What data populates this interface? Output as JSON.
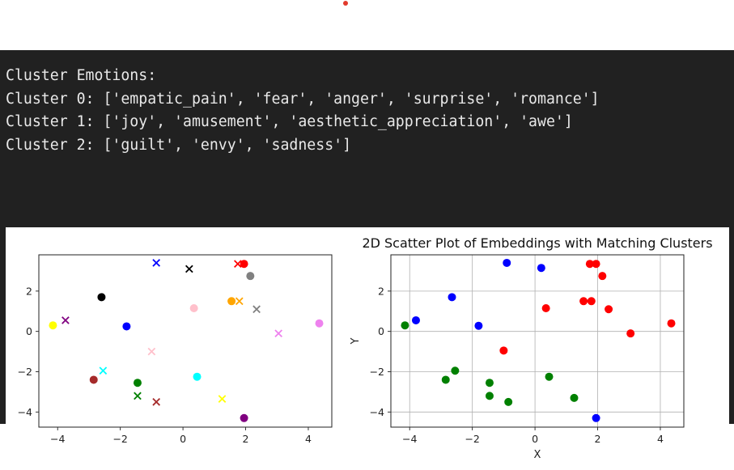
{
  "console": {
    "lines": [
      "Cluster Emotions:",
      "Cluster 0: ['empatic_pain', 'fear', 'anger', 'surprise', 'romance']",
      "Cluster 1: ['joy', 'amusement', 'aesthetic_appreciation', 'awe']",
      "Cluster 2: ['guilt', 'envy', 'sadness']"
    ]
  },
  "chart_data": [
    {
      "type": "scatter",
      "title": "",
      "xlabel": "",
      "ylabel": "",
      "xlim": [
        -4.6,
        4.75
      ],
      "ylim": [
        -4.75,
        3.8
      ],
      "xticks": [
        "−4",
        "−2",
        "0",
        "2",
        "4"
      ],
      "yticks": [
        "2",
        "0",
        "−2",
        "−4"
      ],
      "grid": false,
      "points": [
        {
          "x": -4.15,
          "y": 0.3,
          "color": "#ffff00",
          "marker": "o"
        },
        {
          "x": -3.75,
          "y": 0.55,
          "color": "#800080",
          "marker": "x"
        },
        {
          "x": -2.85,
          "y": -2.4,
          "color": "#a52a2a",
          "marker": "o"
        },
        {
          "x": -2.6,
          "y": 1.7,
          "color": "#000000",
          "marker": "o"
        },
        {
          "x": -2.55,
          "y": -1.95,
          "color": "#00ffff",
          "marker": "x"
        },
        {
          "x": -1.8,
          "y": 0.25,
          "color": "#0000ff",
          "marker": "o"
        },
        {
          "x": -1.45,
          "y": -2.55,
          "color": "#008000",
          "marker": "o"
        },
        {
          "x": -1.45,
          "y": -3.2,
          "color": "#008000",
          "marker": "x"
        },
        {
          "x": -1.0,
          "y": -1.0,
          "color": "#ffc0cb",
          "marker": "x"
        },
        {
          "x": -0.85,
          "y": 3.4,
          "color": "#0000ff",
          "marker": "x"
        },
        {
          "x": -0.85,
          "y": -3.5,
          "color": "#a52a2a",
          "marker": "x"
        },
        {
          "x": 0.2,
          "y": 3.1,
          "color": "#000000",
          "marker": "x"
        },
        {
          "x": 0.35,
          "y": 1.15,
          "color": "#ffc0cb",
          "marker": "o"
        },
        {
          "x": 0.45,
          "y": -2.25,
          "color": "#00ffff",
          "marker": "o"
        },
        {
          "x": 1.25,
          "y": -3.35,
          "color": "#ffff00",
          "marker": "x"
        },
        {
          "x": 1.55,
          "y": 1.5,
          "color": "#ffa500",
          "marker": "o"
        },
        {
          "x": 1.8,
          "y": 1.5,
          "color": "#ffa500",
          "marker": "x"
        },
        {
          "x": 1.75,
          "y": 3.35,
          "color": "#ff0000",
          "marker": "x"
        },
        {
          "x": 1.95,
          "y": 3.35,
          "color": "#ff0000",
          "marker": "o"
        },
        {
          "x": 1.95,
          "y": -4.3,
          "color": "#800080",
          "marker": "o"
        },
        {
          "x": 2.15,
          "y": 2.75,
          "color": "#808080",
          "marker": "o"
        },
        {
          "x": 2.35,
          "y": 1.1,
          "color": "#808080",
          "marker": "x"
        },
        {
          "x": 3.05,
          "y": -0.1,
          "color": "#ee82ee",
          "marker": "x"
        },
        {
          "x": 4.35,
          "y": 0.4,
          "color": "#ee82ee",
          "marker": "o"
        }
      ]
    },
    {
      "type": "scatter",
      "title": "2D Scatter Plot of Embeddings with Matching Clusters",
      "xlabel": "X",
      "ylabel": "Y",
      "xlim": [
        -4.6,
        4.75
      ],
      "ylim": [
        -4.75,
        3.8
      ],
      "xticks": [
        "−4",
        "−2",
        "0",
        "2",
        "4"
      ],
      "yticks": [
        "2",
        "0",
        "−2",
        "−4"
      ],
      "grid": true,
      "series": [
        {
          "color": "#0000ff",
          "points": [
            [
              -3.8,
              0.55
            ],
            [
              -2.65,
              1.7
            ],
            [
              -1.8,
              0.28
            ],
            [
              -0.9,
              3.4
            ],
            [
              0.2,
              3.15
            ],
            [
              1.95,
              -4.3
            ]
          ]
        },
        {
          "color": "#008000",
          "points": [
            [
              -4.15,
              0.3
            ],
            [
              -2.85,
              -2.4
            ],
            [
              -2.55,
              -1.95
            ],
            [
              -1.45,
              -2.55
            ],
            [
              -1.45,
              -3.2
            ],
            [
              -0.85,
              -3.5
            ],
            [
              0.45,
              -2.25
            ],
            [
              1.25,
              -3.3
            ]
          ]
        },
        {
          "color": "#ff0000",
          "points": [
            [
              -1.0,
              -0.95
            ],
            [
              0.35,
              1.15
            ],
            [
              1.55,
              1.5
            ],
            [
              1.8,
              1.5
            ],
            [
              1.75,
              3.35
            ],
            [
              1.95,
              3.35
            ],
            [
              2.15,
              2.75
            ],
            [
              2.35,
              1.1
            ],
            [
              3.05,
              -0.1
            ],
            [
              4.35,
              0.4
            ]
          ]
        }
      ]
    }
  ]
}
